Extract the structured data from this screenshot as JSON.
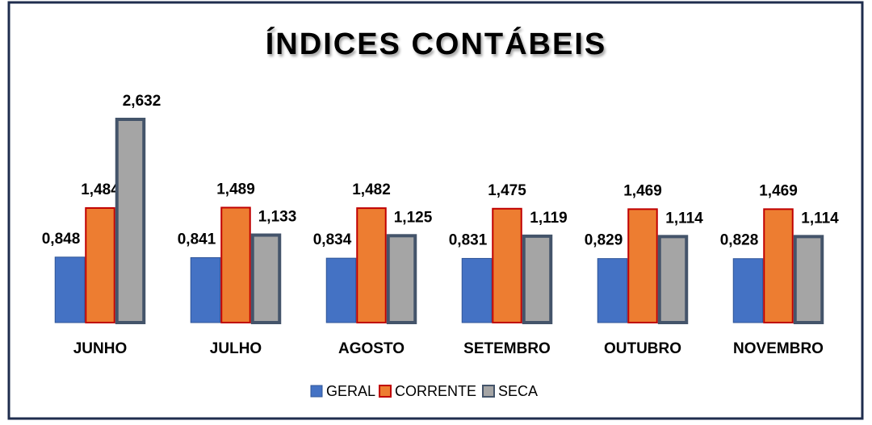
{
  "chart_data": {
    "type": "bar",
    "title": "ÍNDICES CONTÁBEIS",
    "categories": [
      "JUNHO",
      "JULHO",
      "AGOSTO",
      "SETEMBRO",
      "OUTUBRO",
      "NOVEMBRO"
    ],
    "series": [
      {
        "name": "GERAL",
        "color": "#4472c4",
        "values": [
          0.848,
          0.841,
          0.834,
          0.831,
          0.829,
          0.828
        ],
        "value_labels": [
          "0,848",
          "0,841",
          "0,834",
          "0,831",
          "0,829",
          "0,828"
        ]
      },
      {
        "name": "CORRENTE",
        "color": "#ed7d31",
        "values": [
          1.484,
          1.489,
          1.482,
          1.475,
          1.469,
          1.469
        ],
        "value_labels": [
          "1,484",
          "1,489",
          "1,482",
          "1,475",
          "1,469",
          "1,469"
        ]
      },
      {
        "name": "SECA",
        "color": "#a5a5a5",
        "values": [
          2.632,
          1.133,
          1.125,
          1.119,
          1.114,
          1.114
        ],
        "value_labels": [
          "2,632",
          "1,133",
          "1,125",
          "1,119",
          "1,114",
          "1,114"
        ]
      }
    ]
  }
}
